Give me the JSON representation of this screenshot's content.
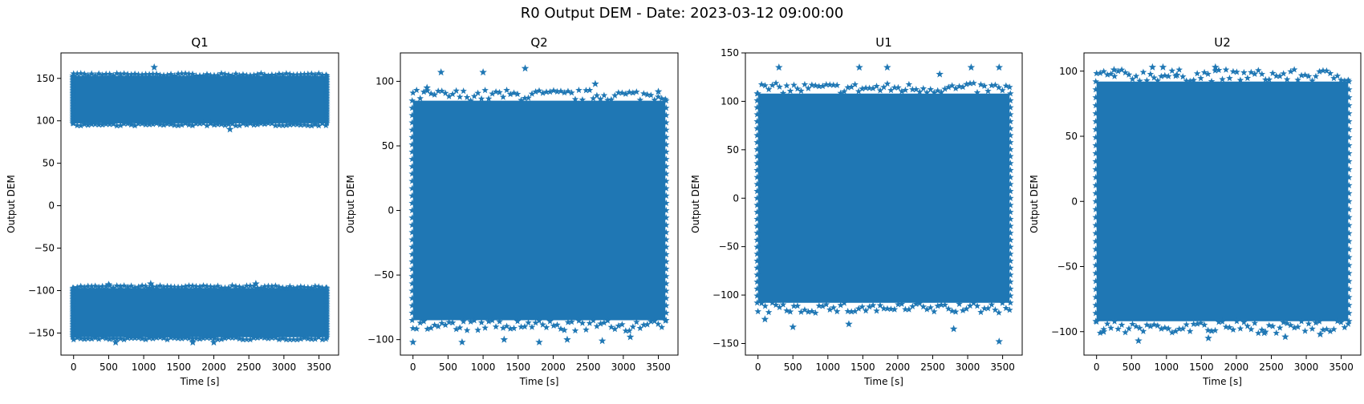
{
  "figure": {
    "title": "R0 Output DEM - Date: 2023-03-12 09:00:00"
  },
  "style": {
    "marker_color": "#1f77b4",
    "marker": "star"
  },
  "chart_data": [
    {
      "type": "scatter",
      "title": "Q1",
      "xlabel": "Time [s]",
      "ylabel": "Output DEM",
      "xlim": [
        -180,
        3780
      ],
      "ylim": [
        -176,
        180
      ],
      "xticks": [
        0,
        500,
        1000,
        1500,
        2000,
        2500,
        3000,
        3500
      ],
      "xtick_labels": [
        "0",
        "500",
        "1000",
        "1500",
        "2000",
        "2500",
        "3000",
        "3500"
      ],
      "yticks": [
        -150,
        -100,
        -50,
        0,
        50,
        100,
        150
      ],
      "ytick_labels": [
        "−150",
        "−100",
        "−50",
        "0",
        "50",
        "100",
        "150"
      ],
      "x_range": [
        0,
        3600
      ],
      "bands": [
        [
          -155,
          -97
        ],
        [
          97,
          153
        ]
      ],
      "outliers": [
        [
          1150,
          163
        ],
        [
          2230,
          90
        ],
        [
          500,
          -93
        ],
        [
          1100,
          -92
        ],
        [
          2600,
          -92
        ],
        [
          600,
          -161
        ],
        [
          1700,
          -161
        ],
        [
          2000,
          -161
        ]
      ]
    },
    {
      "type": "scatter",
      "title": "Q2",
      "xlabel": "Time [s]",
      "ylabel": "Output DEM",
      "xlim": [
        -180,
        3780
      ],
      "ylim": [
        -112,
        122
      ],
      "xticks": [
        0,
        500,
        1000,
        1500,
        2000,
        2500,
        3000,
        3500
      ],
      "xtick_labels": [
        "0",
        "500",
        "1000",
        "1500",
        "2000",
        "2500",
        "3000",
        "3500"
      ],
      "yticks": [
        -100,
        -50,
        0,
        50,
        100
      ],
      "ytick_labels": [
        "−100",
        "−50",
        "0",
        "50",
        "100"
      ],
      "x_range": [
        0,
        3600
      ],
      "bands": [
        [
          -85,
          85
        ]
      ],
      "outliers": [
        [
          400,
          107
        ],
        [
          1000,
          107
        ],
        [
          1600,
          110
        ],
        [
          200,
          95
        ],
        [
          2600,
          98
        ],
        [
          3500,
          92
        ],
        [
          0,
          -102
        ],
        [
          700,
          -102
        ],
        [
          1300,
          -100
        ],
        [
          1800,
          -102
        ],
        [
          2200,
          -100
        ],
        [
          2700,
          -101
        ],
        [
          3100,
          -98
        ]
      ]
    },
    {
      "type": "scatter",
      "title": "U1",
      "xlabel": "Time [s]",
      "ylabel": "Output DEM",
      "xlim": [
        -180,
        3780
      ],
      "ylim": [
        -162,
        150
      ],
      "xticks": [
        0,
        500,
        1000,
        1500,
        2000,
        2500,
        3000,
        3500
      ],
      "xtick_labels": [
        "0",
        "500",
        "1000",
        "1500",
        "2000",
        "2500",
        "3000",
        "3500"
      ],
      "yticks": [
        -150,
        -100,
        -50,
        0,
        50,
        100,
        150
      ],
      "ytick_labels": [
        "−150",
        "−100",
        "−50",
        "0",
        "50",
        "100",
        "150"
      ],
      "x_range": [
        0,
        3600
      ],
      "bands": [
        [
          -108,
          108
        ]
      ],
      "outliers": [
        [
          300,
          135
        ],
        [
          1450,
          135
        ],
        [
          1850,
          135
        ],
        [
          3050,
          135
        ],
        [
          3450,
          135
        ],
        [
          2600,
          128
        ],
        [
          500,
          -133
        ],
        [
          1300,
          -130
        ],
        [
          2800,
          -135
        ],
        [
          3450,
          -148
        ],
        [
          100,
          -125
        ]
      ]
    },
    {
      "type": "scatter",
      "title": "U2",
      "xlabel": "Time [s]",
      "ylabel": "Output DEM",
      "xlim": [
        -180,
        3780
      ],
      "ylim": [
        -118,
        114
      ],
      "xticks": [
        0,
        500,
        1000,
        1500,
        2000,
        2500,
        3000,
        3500
      ],
      "xtick_labels": [
        "0",
        "500",
        "1000",
        "1500",
        "2000",
        "2500",
        "3000",
        "3500"
      ],
      "yticks": [
        -100,
        -50,
        0,
        50,
        100
      ],
      "ytick_labels": [
        "−100",
        "−50",
        "0",
        "50",
        "100"
      ],
      "x_range": [
        0,
        3600
      ],
      "bands": [
        [
          -92,
          92
        ]
      ],
      "outliers": [
        [
          250,
          101
        ],
        [
          800,
          103
        ],
        [
          950,
          103
        ],
        [
          1700,
          103
        ],
        [
          1150,
          97
        ],
        [
          600,
          -107
        ],
        [
          1600,
          -105
        ],
        [
          2700,
          -104
        ],
        [
          2400,
          -101
        ],
        [
          3200,
          -102
        ],
        [
          100,
          -100
        ]
      ]
    }
  ]
}
